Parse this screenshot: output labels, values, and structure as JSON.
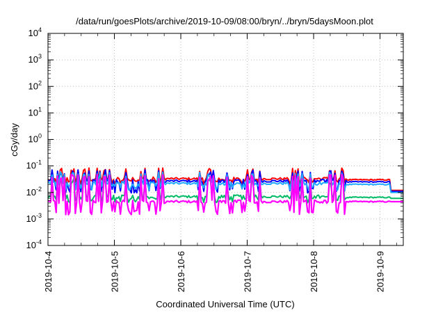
{
  "chart_data": {
    "type": "line",
    "title": "/data/run/goesPlots/archive/2019-10-09/08:00/bryn/../bryn/5daysMoon.plot",
    "xlabel": "Coordinated Universal Time (UTC)",
    "ylabel": "cGy/day",
    "yscale": "log",
    "ylim": [
      0.0001,
      10000
    ],
    "xlim": [
      "2019-10-04",
      "2019-10-09 08:24"
    ],
    "x_ticks": [
      "2019-10-4",
      "2019-10-5",
      "2019-10-6",
      "2019-10-7",
      "2019-10-8",
      "2019-10-9"
    ],
    "y_ticks": [
      {
        "base": "10",
        "exp": "-4"
      },
      {
        "base": "10",
        "exp": "-3"
      },
      {
        "base": "10",
        "exp": "-2"
      },
      {
        "base": "10",
        "exp": "-1"
      },
      {
        "base": "10",
        "exp": "0"
      },
      {
        "base": "10",
        "exp": "1"
      },
      {
        "base": "10",
        "exp": "2"
      },
      {
        "base": "10",
        "exp": "3"
      },
      {
        "base": "10",
        "exp": "4"
      }
    ],
    "grid": true,
    "series": [
      {
        "color": "#ff0000",
        "baseline": 0.033,
        "spike": 0.07,
        "dip": 0.025,
        "late": 0.03,
        "end": 0.012
      },
      {
        "color": "#0000ff",
        "baseline": 0.027,
        "spike": 0.06,
        "dip": 0.012,
        "late": 0.025,
        "end": 0.011
      },
      {
        "color": "#22aaff",
        "baseline": 0.022,
        "spike": 0.05,
        "dip": 0.015,
        "late": 0.02,
        "end": 0.01
      },
      {
        "color": "#00bb66",
        "baseline": 0.007,
        "spike": 0.03,
        "dip": 0.005,
        "late": 0.0065,
        "end": 0.006
      },
      {
        "color": "#ff00ff",
        "baseline": 0.0045,
        "spike": 0.04,
        "dip": 0.0018,
        "late": 0.0045,
        "end": 0.0045
      }
    ]
  }
}
